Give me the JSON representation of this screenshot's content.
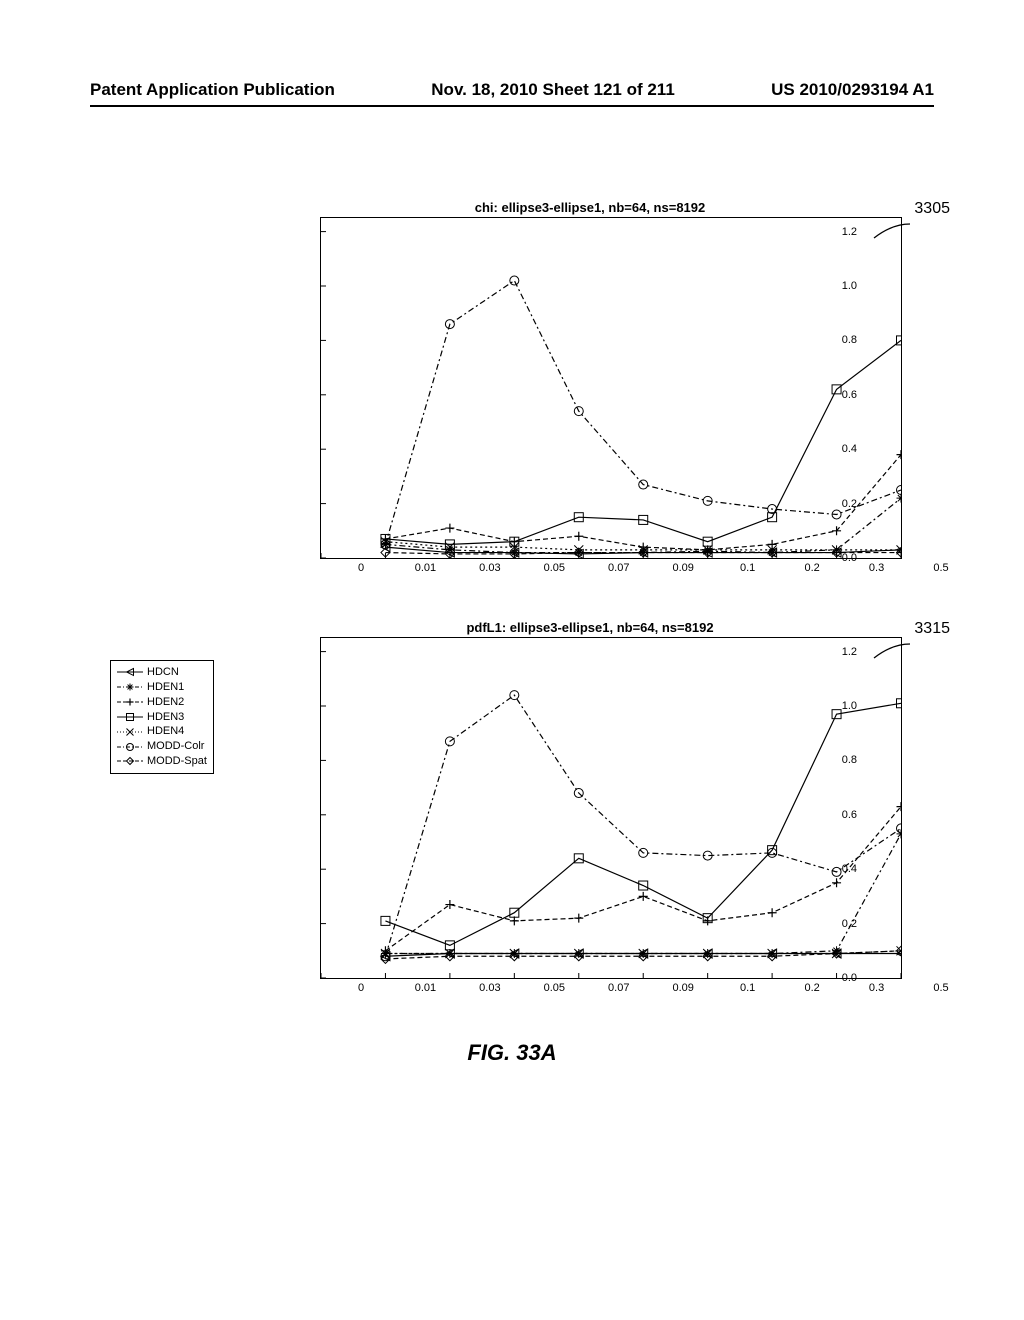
{
  "header": {
    "left": "Patent Application Publication",
    "center": "Nov. 18, 2010  Sheet 121 of 211",
    "right": "US 2010/0293194 A1"
  },
  "legend": {
    "items": [
      {
        "label": "HDCN",
        "marker": "triangle-left",
        "dash": "solid"
      },
      {
        "label": "HDEN1",
        "marker": "asterisk",
        "dash": "dashdot"
      },
      {
        "label": "HDEN2",
        "marker": "plus",
        "dash": "dash"
      },
      {
        "label": "HDEN3",
        "marker": "square",
        "dash": "solid"
      },
      {
        "label": "HDEN4",
        "marker": "x",
        "dash": "dot"
      },
      {
        "label": "MODD-Colr",
        "marker": "circle",
        "dash": "dashdot"
      },
      {
        "label": "MODD-Spat",
        "marker": "diamond",
        "dash": "dash"
      }
    ]
  },
  "figure_caption": "FIG. 33A",
  "charts": [
    {
      "title": "chi: ellipse3-ellipse1, nb=64, ns=8192",
      "callout": "3305",
      "type": "line",
      "x_categories": [
        "0",
        "0.01",
        "0.03",
        "0.05",
        "0.07",
        "0.09",
        "0.1",
        "0.2",
        "0.3",
        "0.5"
      ],
      "y_ticks": [
        "0.0",
        "0.2",
        "0.4",
        "0.6",
        "0.8",
        "1.0",
        "1.2"
      ],
      "ylim": [
        0.0,
        1.25
      ],
      "series": {
        "HDCN": [
          null,
          0.04,
          0.02,
          0.02,
          0.015,
          0.02,
          0.02,
          0.02,
          0.02,
          0.03
        ],
        "HDEN1": [
          null,
          0.05,
          0.03,
          0.02,
          0.02,
          0.02,
          0.025,
          0.02,
          0.03,
          0.22
        ],
        "HDEN2": [
          null,
          0.07,
          0.11,
          0.06,
          0.08,
          0.04,
          0.03,
          0.05,
          0.1,
          0.38
        ],
        "HDEN3": [
          null,
          0.07,
          0.05,
          0.06,
          0.15,
          0.14,
          0.06,
          0.15,
          0.62,
          0.8
        ],
        "HDEN4": [
          null,
          0.06,
          0.04,
          0.04,
          0.03,
          0.03,
          0.03,
          0.03,
          0.03,
          0.03
        ],
        "MODD-Colr": [
          null,
          0.05,
          0.86,
          1.02,
          0.54,
          0.27,
          0.21,
          0.18,
          0.16,
          0.25
        ],
        "MODD-Spat": [
          null,
          0.02,
          0.015,
          0.015,
          0.02,
          0.02,
          0.02,
          0.02,
          0.02,
          0.02
        ]
      },
      "colors": {
        "HDCN": "#000",
        "HDEN1": "#000",
        "HDEN2": "#000",
        "HDEN3": "#000",
        "HDEN4": "#000",
        "MODD-Colr": "#000",
        "MODD-Spat": "#000"
      },
      "dashes": {
        "HDCN": "0",
        "HDEN1": "6 3 2 3",
        "HDEN2": "5 3",
        "HDEN3": "0",
        "HDEN4": "2 3",
        "MODD-Colr": "6 3 2 3",
        "MODD-Spat": "5 3"
      },
      "markers": {
        "HDCN": "triangle-left",
        "HDEN1": "asterisk",
        "HDEN2": "plus",
        "HDEN3": "square",
        "HDEN4": "x",
        "MODD-Colr": "circle",
        "MODD-Spat": "diamond"
      }
    },
    {
      "title": "pdfL1: ellipse3-ellipse1, nb=64, ns=8192",
      "callout": "3315",
      "type": "line",
      "x_categories": [
        "0",
        "0.01",
        "0.03",
        "0.05",
        "0.07",
        "0.09",
        "0.1",
        "0.2",
        "0.3",
        "0.5"
      ],
      "y_ticks": [
        "0.0",
        "0.2",
        "0.4",
        "0.6",
        "0.8",
        "1.0",
        "1.2"
      ],
      "ylim": [
        0.0,
        1.25
      ],
      "series": {
        "HDCN": [
          null,
          0.08,
          0.09,
          0.09,
          0.09,
          0.09,
          0.09,
          0.09,
          0.09,
          0.09
        ],
        "HDEN1": [
          null,
          0.09,
          0.09,
          0.09,
          0.09,
          0.09,
          0.09,
          0.09,
          0.1,
          0.53
        ],
        "HDEN2": [
          null,
          0.1,
          0.27,
          0.21,
          0.22,
          0.3,
          0.21,
          0.24,
          0.35,
          0.63
        ],
        "HDEN3": [
          null,
          0.21,
          0.12,
          0.24,
          0.44,
          0.34,
          0.22,
          0.47,
          0.97,
          1.01
        ],
        "HDEN4": [
          null,
          0.09,
          0.09,
          0.09,
          0.09,
          0.09,
          0.09,
          0.09,
          0.09,
          0.1
        ],
        "MODD-Colr": [
          null,
          0.08,
          0.87,
          1.04,
          0.68,
          0.46,
          0.45,
          0.46,
          0.39,
          0.55
        ],
        "MODD-Spat": [
          null,
          0.07,
          0.08,
          0.08,
          0.08,
          0.08,
          0.08,
          0.08,
          0.09,
          0.1
        ]
      },
      "colors": {
        "HDCN": "#000",
        "HDEN1": "#000",
        "HDEN2": "#000",
        "HDEN3": "#000",
        "HDEN4": "#000",
        "MODD-Colr": "#000",
        "MODD-Spat": "#000"
      },
      "dashes": {
        "HDCN": "0",
        "HDEN1": "6 3 2 3",
        "HDEN2": "5 3",
        "HDEN3": "0",
        "HDEN4": "2 3",
        "MODD-Colr": "6 3 2 3",
        "MODD-Spat": "5 3"
      },
      "markers": {
        "HDCN": "triangle-left",
        "HDEN1": "asterisk",
        "HDEN2": "plus",
        "HDEN3": "square",
        "HDEN4": "x",
        "MODD-Colr": "circle",
        "MODD-Spat": "diamond"
      }
    }
  ]
}
